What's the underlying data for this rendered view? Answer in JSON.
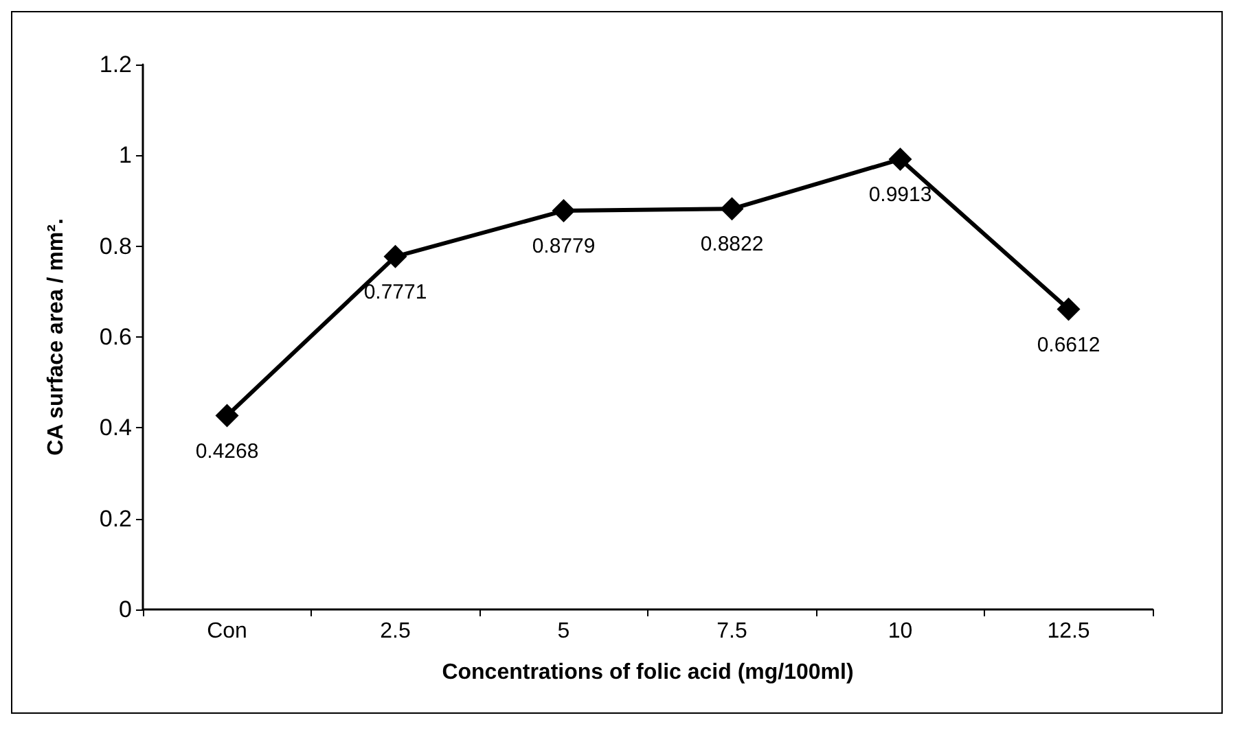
{
  "chart_data": {
    "type": "line",
    "xlabel": "Concentrations of folic acid (mg/100ml)",
    "ylabel": "CA surface area / mm².",
    "categories": [
      "Con",
      "2.5",
      "5",
      "7.5",
      "10",
      "12.5"
    ],
    "series": [
      {
        "color": "#000000",
        "values": [
          0.4268,
          0.7771,
          0.8779,
          0.8822,
          0.9913,
          0.6612
        ]
      }
    ],
    "ylim": [
      0,
      1.2
    ],
    "yticks": [
      0,
      0.2,
      0.4,
      0.6,
      0.8,
      1,
      1.2
    ],
    "grid": false,
    "marker": "diamond",
    "line_style": "solid",
    "data_labels": true
  }
}
